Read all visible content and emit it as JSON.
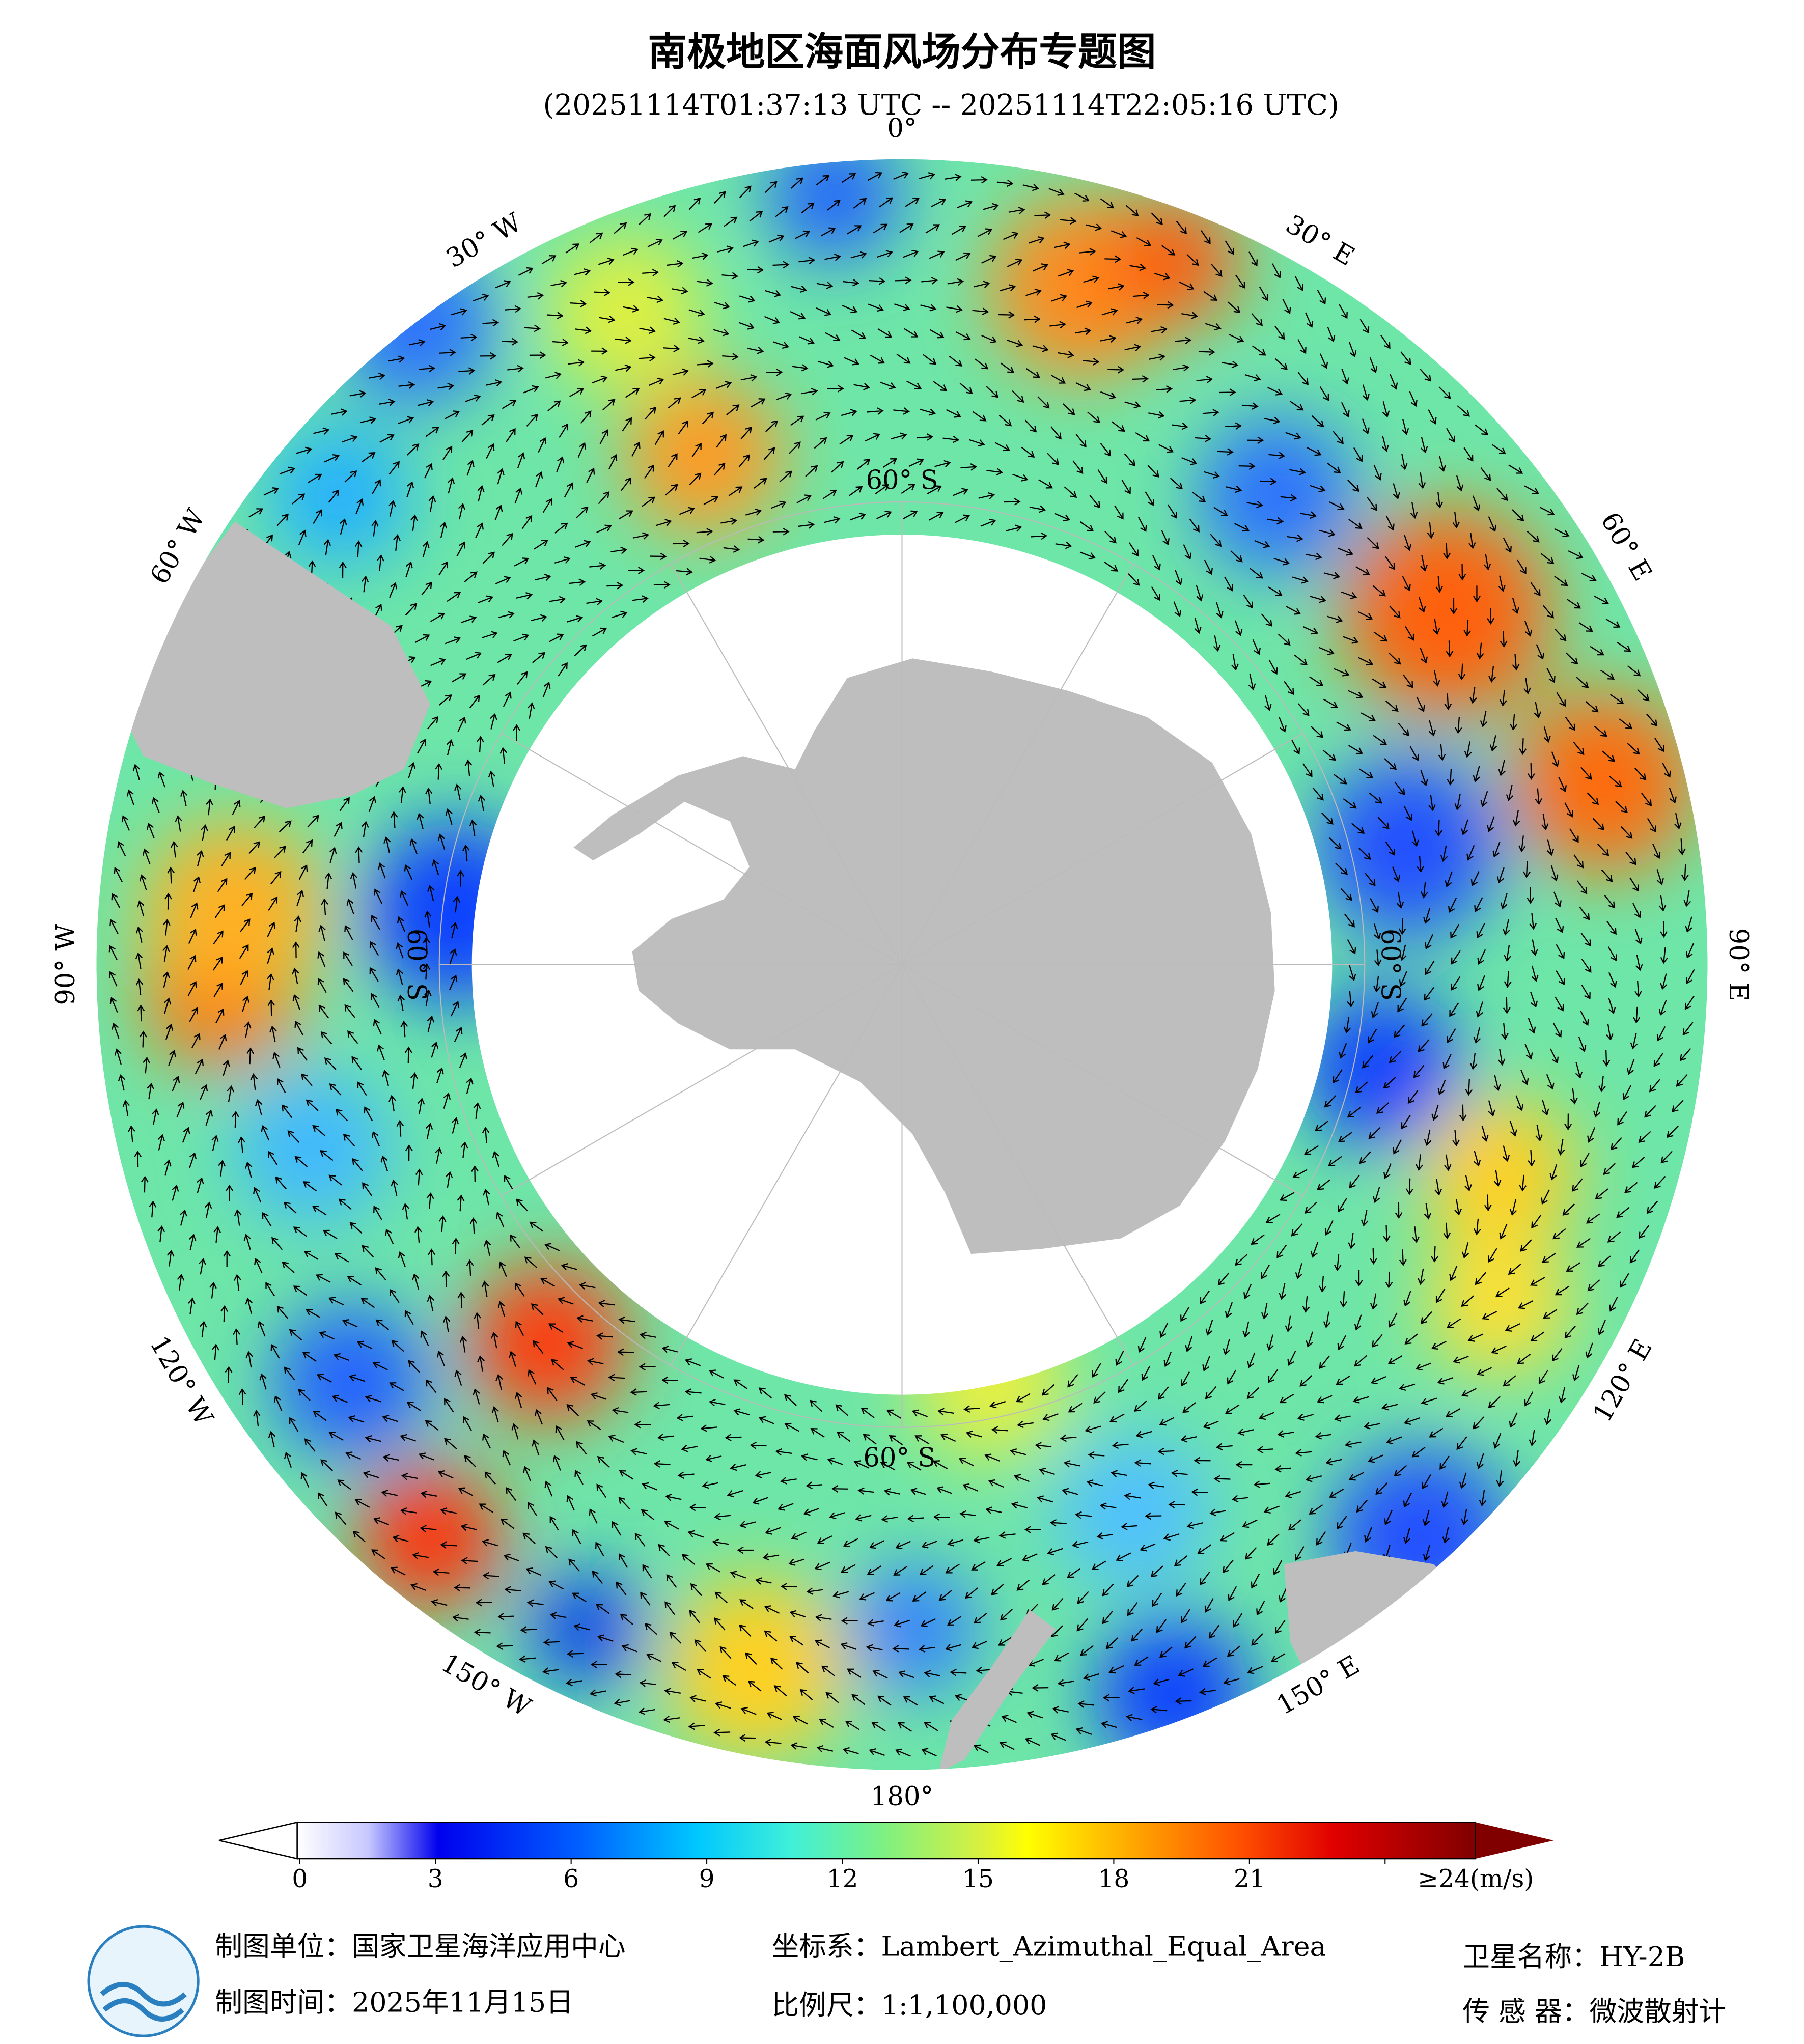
{
  "title": "南极地区海面风场分布专题图",
  "subtitle": "(20251114T01:37:13 UTC -- 20251114T22:05:16 UTC)",
  "map": {
    "lon_labels": [
      {
        "value": 0,
        "label": "0°"
      },
      {
        "value": 30,
        "label": "30° E"
      },
      {
        "value": 60,
        "label": "60° E"
      },
      {
        "value": 90,
        "label": "90° E"
      },
      {
        "value": 120,
        "label": "120° E"
      },
      {
        "value": 150,
        "label": "150° E"
      },
      {
        "value": 180,
        "label": "180°"
      },
      {
        "value": -150,
        "label": "150° W"
      },
      {
        "value": -120,
        "label": "120° W"
      },
      {
        "value": -90,
        "label": "90° W"
      },
      {
        "value": -60,
        "label": "60° W"
      },
      {
        "value": -30,
        "label": "30° W"
      }
    ],
    "lat_labels": [
      "60° S",
      "60° S",
      "60° S",
      "60° S"
    ]
  },
  "colorbar": {
    "range": [
      0,
      26
    ],
    "ticks": [
      0,
      3,
      6,
      9,
      12,
      15,
      18,
      21,
      {
        "value": 24,
        "label": "≥24(m/s)"
      }
    ]
  },
  "footer": {
    "producer": "制图单位：国家卫星海洋应用中心",
    "date": "制图时间：2025年11月15日",
    "crs": "坐标系：Lambert_Azimuthal_Equal_Area",
    "scale": "比例尺：1:1,100,000",
    "satellite": "卫星名称：HY-2B",
    "sensor": "传 感 器：微波散射计"
  }
}
